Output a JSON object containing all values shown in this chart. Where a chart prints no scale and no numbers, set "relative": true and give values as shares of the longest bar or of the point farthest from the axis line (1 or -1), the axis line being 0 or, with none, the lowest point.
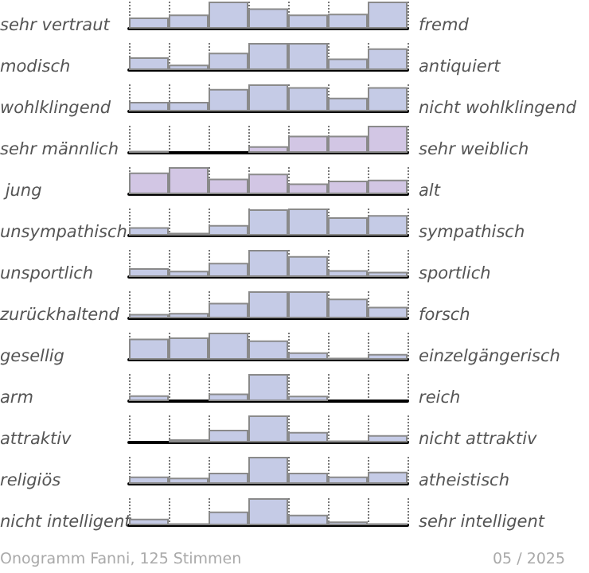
{
  "chart_data": [
    {
      "type": "bar",
      "categories": [
        null,
        null,
        null,
        null,
        null,
        null,
        null
      ],
      "values": [
        0.41,
        0.52,
        1,
        0.75,
        0.52,
        0.55,
        1
      ],
      "relative": true,
      "ylabel": "sehr vertraut",
      "y2label": "fremd",
      "color": "#c5cbe6",
      "grid": "x"
    },
    {
      "type": "bar",
      "categories": [
        null,
        null,
        null,
        null,
        null,
        null,
        null
      ],
      "values": [
        0.47,
        0.2,
        0.64,
        1,
        1,
        0.43,
        0.8
      ],
      "relative": true,
      "ylabel": "modisch",
      "y2label": "antiquiert",
      "color": "#c5cbe6",
      "grid": "x"
    },
    {
      "type": "bar",
      "categories": [
        null,
        null,
        null,
        null,
        null,
        null,
        null
      ],
      "values": [
        0.35,
        0.35,
        0.83,
        1,
        0.9,
        0.51,
        0.9
      ],
      "relative": true,
      "ylabel": "wohlklingend",
      "y2label": "nicht wohlklingend",
      "color": "#c5cbe6",
      "grid": "x"
    },
    {
      "type": "bar",
      "categories": [
        null,
        null,
        null,
        null,
        null,
        null,
        null
      ],
      "values": [
        0.07,
        0,
        0,
        0.24,
        0.63,
        0.63,
        1
      ],
      "relative": true,
      "ylabel": "sehr männlich",
      "y2label": "sehr weiblich",
      "color": "#d2c6e4",
      "grid": "x"
    },
    {
      "type": "bar",
      "categories": [
        null,
        null,
        null,
        null,
        null,
        null,
        null
      ],
      "values": [
        0.8,
        1,
        0.57,
        0.76,
        0.4,
        0.5,
        0.54
      ],
      "relative": true,
      "ylabel": " jung",
      "y2label": "alt",
      "color": "#d2c6e4",
      "grid": "x"
    },
    {
      "type": "bar",
      "categories": [
        null,
        null,
        null,
        null,
        null,
        null,
        null
      ],
      "values": [
        0.31,
        0.1,
        0.39,
        0.97,
        1,
        0.68,
        0.76
      ],
      "relative": true,
      "ylabel": "unsympathisch",
      "y2label": "sympathisch",
      "color": "#c5cbe6",
      "grid": "x"
    },
    {
      "type": "bar",
      "categories": [
        null,
        null,
        null,
        null,
        null,
        null,
        null
      ],
      "values": [
        0.32,
        0.23,
        0.52,
        1,
        0.77,
        0.25,
        0.19
      ],
      "relative": true,
      "ylabel": "unsportlich",
      "y2label": "sportlich",
      "color": "#c5cbe6",
      "grid": "x"
    },
    {
      "type": "bar",
      "categories": [
        null,
        null,
        null,
        null,
        null,
        null,
        null
      ],
      "values": [
        0.16,
        0.2,
        0.57,
        1,
        1,
        0.73,
        0.43
      ],
      "relative": true,
      "ylabel": "zurückhaltend",
      "y2label": "forsch",
      "color": "#c5cbe6",
      "grid": "x"
    },
    {
      "type": "bar",
      "categories": [
        null,
        null,
        null,
        null,
        null,
        null,
        null
      ],
      "values": [
        0.78,
        0.82,
        1,
        0.71,
        0.27,
        0.07,
        0.21
      ],
      "relative": true,
      "ylabel": "gesellig",
      "y2label": "einzelgängerisch",
      "color": "#c5cbe6",
      "grid": "x"
    },
    {
      "type": "bar",
      "categories": [
        null,
        null,
        null,
        null,
        null,
        null,
        null
      ],
      "values": [
        0.21,
        0,
        0.28,
        1,
        0.2,
        0,
        0
      ],
      "relative": true,
      "ylabel": "arm",
      "y2label": "reich",
      "color": "#c5cbe6",
      "grid": "x"
    },
    {
      "type": "bar",
      "categories": [
        null,
        null,
        null,
        null,
        null,
        null,
        null
      ],
      "values": [
        0,
        0.12,
        0.47,
        1,
        0.39,
        0.07,
        0.27
      ],
      "relative": true,
      "ylabel": "attraktiv",
      "y2label": "nicht attraktiv",
      "color": "#c5cbe6",
      "grid": "x"
    },
    {
      "type": "bar",
      "categories": [
        null,
        null,
        null,
        null,
        null,
        null,
        null
      ],
      "values": [
        0.27,
        0.23,
        0.41,
        1,
        0.41,
        0.27,
        0.45
      ],
      "relative": true,
      "ylabel": "religiös",
      "y2label": "atheistisch",
      "color": "#c5cbe6",
      "grid": "x"
    },
    {
      "type": "bar",
      "categories": [
        null,
        null,
        null,
        null,
        null,
        null,
        null
      ],
      "values": [
        0.24,
        0.07,
        0.51,
        1,
        0.39,
        0.14,
        0.07
      ],
      "relative": true,
      "ylabel": "nicht intelligent",
      "y2label": "sehr intelligent",
      "color": "#c5cbe6",
      "grid": "x",
      "annotations": [
        "Onogramm Fanni, 125 Stimmen",
        "05 / 2025"
      ]
    }
  ]
}
